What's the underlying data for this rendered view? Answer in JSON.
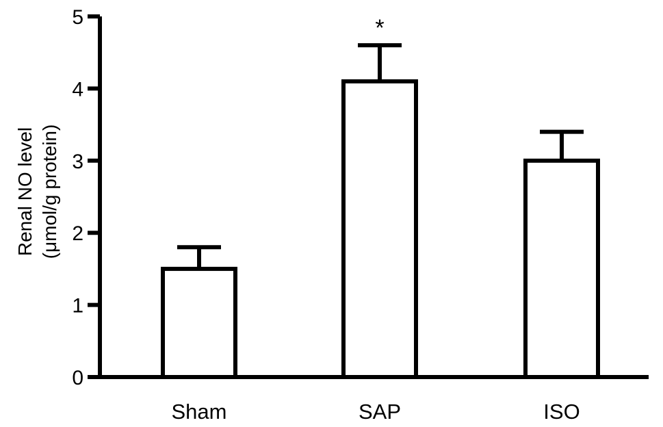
{
  "chart_data": {
    "type": "bar",
    "categories": [
      "Sham",
      "SAP",
      "ISO"
    ],
    "values": [
      1.5,
      4.1,
      3.0
    ],
    "errors": [
      0.3,
      0.5,
      0.4
    ],
    "annotations": [
      "",
      "*",
      ""
    ],
    "ylabel_line1": "Renal NO level",
    "ylabel_line2": "(μmol/g protein)",
    "xlabel": "",
    "ylim": [
      0,
      5
    ],
    "yticks": [
      "0",
      "1",
      "2",
      "3",
      "4",
      "5"
    ],
    "grid": false,
    "bar_fill": "#ffffff",
    "stroke_color": "#000000"
  }
}
